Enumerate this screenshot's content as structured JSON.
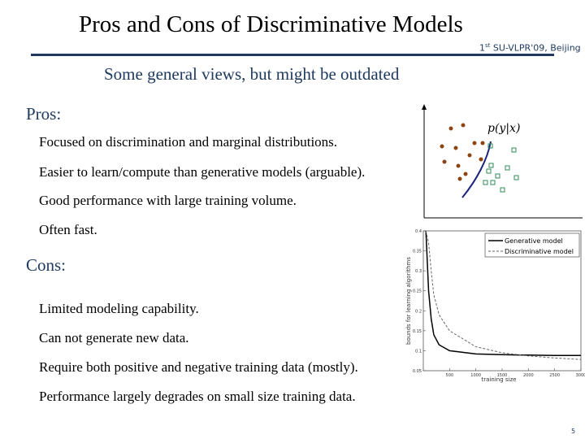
{
  "slide": {
    "title": "Pros and Cons of Discriminative Models",
    "conference": {
      "ordinal": "1",
      "ordinal_suffix": "st",
      "name": "SU-VLPR'09, Beijing"
    },
    "subtitle": "Some general views, but might be outdated",
    "pros_heading": "Pros:",
    "pros": [
      "Focused on discrimination and marginal distributions.",
      "Easier to learn/compute than generative models (arguable).",
      "Good performance with large training volume.",
      "Often fast."
    ],
    "cons_heading": "Cons:",
    "cons": [
      "Limited modeling capability.",
      "Can not generate new data.",
      "Require both positive and negative training data (mostly).",
      "Performance largely degrades on small size training data."
    ],
    "page_number": "5"
  },
  "diagram": {
    "formula": "p(y|x)",
    "circle_color": "#8b4513",
    "square_color": "#2e8b57",
    "boundary_color": "#1a237e"
  },
  "chart_data": {
    "type": "line",
    "xlabel": "training size",
    "ylabel": "bounds for learning algorithms",
    "x_ticks": [
      "500",
      "1000",
      "1500",
      "2000",
      "2500",
      "3000"
    ],
    "y_ticks": [
      "0.05",
      "0.1",
      "0.15",
      "0.2",
      "0.25",
      "0.3",
      "0.35",
      "0.4"
    ],
    "xlim": [
      0,
      3000
    ],
    "ylim": [
      0.05,
      0.4
    ],
    "legend": "top-right",
    "series": [
      {
        "name": "Generative model",
        "style": "solid",
        "x": [
          50,
          100,
          150,
          200,
          300,
          500,
          1000,
          1500,
          2000,
          2500,
          3000
        ],
        "y": [
          0.4,
          0.25,
          0.18,
          0.14,
          0.115,
          0.1,
          0.092,
          0.09,
          0.089,
          0.088,
          0.088
        ]
      },
      {
        "name": "Discriminative model",
        "style": "dashed",
        "x": [
          50,
          100,
          150,
          200,
          300,
          500,
          1000,
          1500,
          2000,
          2500,
          3000
        ],
        "y": [
          0.4,
          0.37,
          0.3,
          0.24,
          0.19,
          0.15,
          0.11,
          0.095,
          0.087,
          0.082,
          0.078
        ]
      }
    ]
  }
}
